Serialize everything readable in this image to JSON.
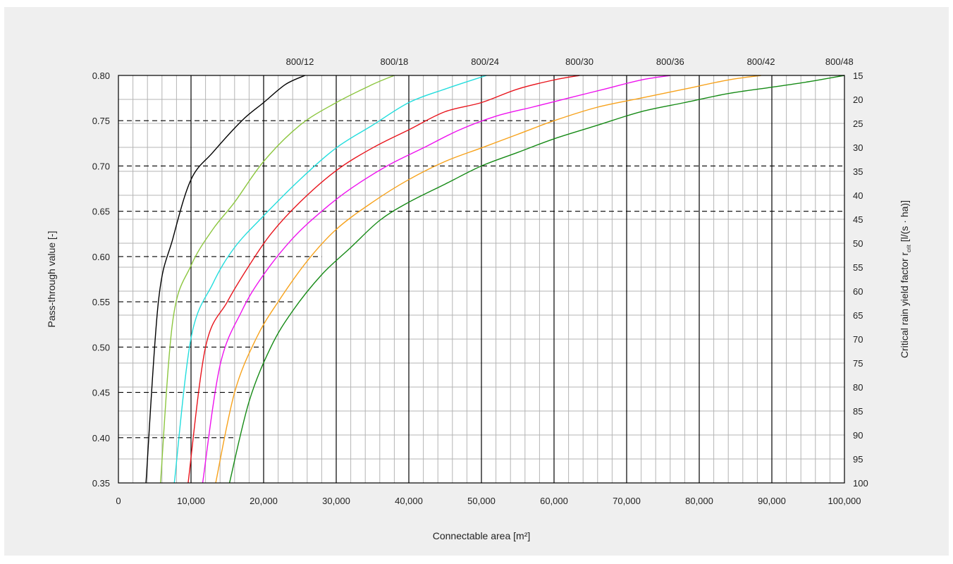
{
  "chart_data": {
    "type": "line",
    "xlabel": "Connectable area [m²]",
    "ylabel": "Pass-through value [-]",
    "y2label_main": "Critical rain yield factor r",
    "y2label_sub": "crit",
    "y2label_unit": "[l/(s · ha)]",
    "xlim": [
      0,
      100000
    ],
    "ylim": [
      0.35,
      0.8
    ],
    "x_ticks": [
      {
        "value": 0,
        "label": "0"
      },
      {
        "value": 10000,
        "label": "10,000"
      },
      {
        "value": 20000,
        "label": "20,000"
      },
      {
        "value": 30000,
        "label": "30,000"
      },
      {
        "value": 40000,
        "label": "40,000"
      },
      {
        "value": 50000,
        "label": "50,000"
      },
      {
        "value": 60000,
        "label": "60,000"
      },
      {
        "value": 70000,
        "label": "70,000"
      },
      {
        "value": 80000,
        "label": "80,000"
      },
      {
        "value": 90000,
        "label": "90,000"
      },
      {
        "value": 100000,
        "label": "100,000"
      }
    ],
    "y_ticks": [
      {
        "value": 0.35,
        "label": "0.35"
      },
      {
        "value": 0.4,
        "label": "0.40"
      },
      {
        "value": 0.45,
        "label": "0.45"
      },
      {
        "value": 0.5,
        "label": "0.50"
      },
      {
        "value": 0.55,
        "label": "0.55"
      },
      {
        "value": 0.6,
        "label": "0.60"
      },
      {
        "value": 0.65,
        "label": "0.65"
      },
      {
        "value": 0.7,
        "label": "0.70"
      },
      {
        "value": 0.75,
        "label": "0.75"
      },
      {
        "value": 0.8,
        "label": "0.80"
      }
    ],
    "y2_ticks": [
      {
        "value": 15,
        "label": "15"
      },
      {
        "value": 20,
        "label": "20"
      },
      {
        "value": 25,
        "label": "25"
      },
      {
        "value": 30,
        "label": "30"
      },
      {
        "value": 35,
        "label": "35"
      },
      {
        "value": 40,
        "label": "40"
      },
      {
        "value": 45,
        "label": "45"
      },
      {
        "value": 50,
        "label": "50"
      },
      {
        "value": 55,
        "label": "55"
      },
      {
        "value": 60,
        "label": "60"
      },
      {
        "value": 65,
        "label": "65"
      },
      {
        "value": 70,
        "label": "70"
      },
      {
        "value": 75,
        "label": "75"
      },
      {
        "value": 80,
        "label": "80"
      },
      {
        "value": 85,
        "label": "85"
      },
      {
        "value": 90,
        "label": "90"
      },
      {
        "value": 95,
        "label": "95"
      },
      {
        "value": 100,
        "label": "100"
      }
    ],
    "pass_through_dashes": [
      {
        "y": 0.75,
        "x_end": 60000
      },
      {
        "y": 0.7,
        "x_end": 100000
      },
      {
        "y": 0.65,
        "x_end": 100000
      },
      {
        "y": 0.6,
        "x_end": 28000
      },
      {
        "y": 0.55,
        "x_end": 24000
      },
      {
        "y": 0.5,
        "x_end": 20000
      },
      {
        "y": 0.45,
        "x_end": 18000
      },
      {
        "y": 0.4,
        "x_end": 16000
      }
    ],
    "series": [
      {
        "name": "800/12",
        "color": "#000000",
        "x": [
          3800,
          5500,
          7500,
          10000,
          13000,
          17000,
          20000,
          23000,
          25700
        ],
        "y": [
          0.35,
          0.55,
          0.62,
          0.685,
          0.715,
          0.75,
          0.77,
          0.79,
          0.8
        ]
      },
      {
        "name": "800/18",
        "color": "#8cc63f",
        "x": [
          5800,
          7500,
          10000,
          13000,
          16000,
          20000,
          25000,
          30000,
          35000,
          38000
        ],
        "y": [
          0.35,
          0.53,
          0.59,
          0.63,
          0.66,
          0.705,
          0.745,
          0.77,
          0.79,
          0.8
        ]
      },
      {
        "name": "800/24",
        "color": "#22dddd",
        "x": [
          7700,
          10000,
          13000,
          16000,
          20000,
          25000,
          30000,
          35000,
          40000,
          45000,
          50700
        ],
        "y": [
          0.35,
          0.51,
          0.57,
          0.61,
          0.645,
          0.685,
          0.72,
          0.745,
          0.77,
          0.785,
          0.8
        ]
      },
      {
        "name": "800/30",
        "color": "#e8141c",
        "x": [
          9600,
          12000,
          15000,
          18000,
          21000,
          25000,
          30000,
          35000,
          40000,
          45000,
          50000,
          55000,
          60000,
          63500
        ],
        "y": [
          0.35,
          0.5,
          0.55,
          0.59,
          0.625,
          0.66,
          0.695,
          0.72,
          0.74,
          0.76,
          0.77,
          0.785,
          0.795,
          0.8
        ]
      },
      {
        "name": "800/36",
        "color": "#ee11ee",
        "x": [
          11600,
          14000,
          17000,
          20000,
          24000,
          28000,
          32000,
          37000,
          42000,
          47000,
          52000,
          57000,
          62000,
          67000,
          72000,
          76000
        ],
        "y": [
          0.35,
          0.48,
          0.54,
          0.58,
          0.62,
          0.65,
          0.675,
          0.7,
          0.72,
          0.74,
          0.755,
          0.765,
          0.775,
          0.785,
          0.795,
          0.8
        ]
      },
      {
        "name": "800/42",
        "color": "#f7a21b",
        "x": [
          13400,
          16000,
          19000,
          22000,
          26000,
          30000,
          35000,
          40000,
          45000,
          50000,
          55000,
          60000,
          66000,
          72000,
          78000,
          84000,
          88500
        ],
        "y": [
          0.35,
          0.45,
          0.51,
          0.55,
          0.595,
          0.63,
          0.66,
          0.685,
          0.705,
          0.72,
          0.735,
          0.75,
          0.765,
          0.775,
          0.785,
          0.795,
          0.8
        ]
      },
      {
        "name": "800/48",
        "color": "#158a15",
        "x": [
          15300,
          18000,
          21000,
          24000,
          28000,
          32000,
          36000,
          40000,
          45000,
          50000,
          55000,
          60000,
          66000,
          72000,
          78000,
          84000,
          90000,
          95000,
          100000
        ],
        "y": [
          0.35,
          0.44,
          0.5,
          0.54,
          0.58,
          0.61,
          0.64,
          0.66,
          0.68,
          0.7,
          0.715,
          0.73,
          0.745,
          0.76,
          0.77,
          0.78,
          0.787,
          0.793,
          0.8
        ]
      }
    ],
    "series_label_x": [
      25000,
      38000,
      50500,
      63500,
      76000,
      88500,
      99300
    ],
    "grid": true
  }
}
